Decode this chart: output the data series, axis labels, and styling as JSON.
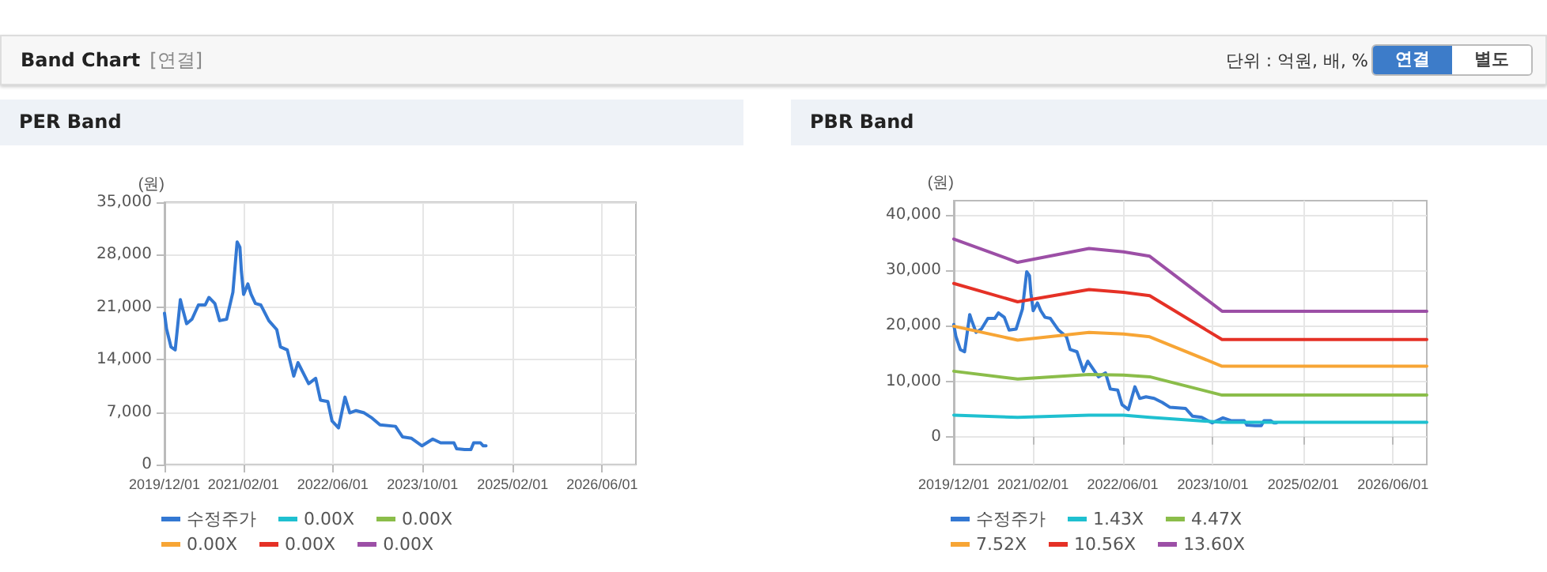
{
  "chart_data": [
    {
      "type": "other",
      "title": "Band Chart",
      "subtitle": "[연결]",
      "annotations": [
        "단위 : 억원, 배, %",
        "연결",
        "별도"
      ]
    },
    {
      "type": "line",
      "title": "PER Band",
      "ylabel": "(원)",
      "xlim": [
        "2019-12-01",
        "2026-12-01"
      ],
      "ylim": [
        0,
        35000
      ],
      "yticks": [
        0,
        {
          "value": 7000,
          "label": "7,000"
        },
        {
          "value": 14000,
          "label": "14,000"
        },
        {
          "value": 21000,
          "label": "21,000"
        },
        {
          "value": 28000,
          "label": "28,000"
        },
        {
          "value": 35000,
          "label": "35,000"
        }
      ],
      "xticks": [
        {
          "value": "2019-12-01",
          "label": "2019/12/01"
        },
        {
          "value": "2021-02-01",
          "label": "2021/02/01"
        },
        {
          "value": "2022-06-01",
          "label": "2022/06/01"
        },
        {
          "value": "2023-10-01",
          "label": "2023/10/01"
        },
        {
          "value": "2025-02-01",
          "label": "2025/02/01"
        },
        {
          "value": "2026-06-01",
          "label": "2026/06/01"
        }
      ],
      "grid": true,
      "legend": "bottom",
      "marker": "none",
      "line_style": "solid",
      "series": [
        {
          "name": "수정주가",
          "color": "#3378d3",
          "x": [
            "2019-12-01",
            "2019-12-12",
            "2020-01-05",
            "2020-01-28",
            "2020-02-25",
            "2020-03-07",
            "2020-03-30",
            "2020-04-28",
            "2020-06-02",
            "2020-07-09",
            "2020-07-29",
            "2020-08-30",
            "2020-09-25",
            "2020-11-02",
            "2020-12-06",
            "2020-12-29",
            "2021-01-13",
            "2021-01-21",
            "2021-02-02",
            "2021-02-25",
            "2021-03-15",
            "2021-04-07",
            "2021-05-06",
            "2021-06-19",
            "2021-08-01",
            "2021-08-21",
            "2021-09-27",
            "2021-11-01",
            "2021-11-24",
            "2022-01-21",
            "2022-02-28",
            "2022-03-26",
            "2022-05-05",
            "2022-05-28",
            "2022-07-02",
            "2022-08-06",
            "2022-09-01",
            "2022-10-05",
            "2022-11-18",
            "2022-12-31",
            "2023-02-12",
            "2023-05-07",
            "2023-06-14",
            "2023-08-02",
            "2023-09-28",
            "2023-11-25",
            "2024-01-07",
            "2024-03-19",
            "2024-04-03",
            "2024-05-16",
            "2024-06-19",
            "2024-07-04",
            "2024-08-10",
            "2024-08-25",
            "2024-09-09"
          ],
          "values": [
            20200,
            18100,
            15700,
            15300,
            22000,
            20900,
            18800,
            19400,
            21300,
            21300,
            22300,
            21500,
            19200,
            19400,
            23000,
            29700,
            29000,
            25800,
            22700,
            24100,
            22700,
            21500,
            21300,
            19200,
            18000,
            15700,
            15300,
            11800,
            13600,
            10800,
            11500,
            8600,
            8400,
            5800,
            4900,
            9000,
            6900,
            7200,
            6900,
            6200,
            5300,
            5100,
            3700,
            3500,
            2500,
            3400,
            2900,
            2900,
            2100,
            2000,
            2000,
            2900,
            2900,
            2500,
            2500
          ]
        },
        {
          "name": "0.00X",
          "color": "#1fc0d0"
        },
        {
          "name": "0.00X",
          "color": "#8bbd4a"
        },
        {
          "name": "0.00X",
          "color": "#f7a535"
        },
        {
          "name": "0.00X",
          "color": "#e53126"
        },
        {
          "name": "0.00X",
          "color": "#9c4fa6"
        }
      ]
    },
    {
      "type": "line",
      "title": "PBR Band",
      "ylabel": "(원)",
      "xlim": [
        "2019-12-01",
        "2026-12-01"
      ],
      "ylim": [
        -5000,
        42500
      ],
      "yticks": [
        0,
        {
          "value": 10000,
          "label": "10,000"
        },
        {
          "value": 20000,
          "label": "20,000"
        },
        {
          "value": 30000,
          "label": "30,000"
        },
        {
          "value": 40000,
          "label": "40,000"
        }
      ],
      "xticks": [
        {
          "value": "2019-12-01",
          "label": "2019/12/01"
        },
        {
          "value": "2021-02-01",
          "label": "2021/02/01"
        },
        {
          "value": "2022-06-01",
          "label": "2022/06/01"
        },
        {
          "value": "2023-10-01",
          "label": "2023/10/01"
        },
        {
          "value": "2025-02-01",
          "label": "2025/02/01"
        },
        {
          "value": "2026-06-01",
          "label": "2026/06/01"
        }
      ],
      "grid": true,
      "legend": "bottom",
      "marker": "none",
      "line_style": "solid",
      "series": [
        {
          "name": "수정주가",
          "color": "#3378d3",
          "x": [
            "2019-12-01",
            "2019-12-12",
            "2020-01-05",
            "2020-01-28",
            "2020-02-25",
            "2020-03-07",
            "2020-03-30",
            "2020-04-28",
            "2020-06-02",
            "2020-07-09",
            "2020-07-29",
            "2020-08-30",
            "2020-09-25",
            "2020-11-02",
            "2020-12-06",
            "2020-12-29",
            "2021-01-13",
            "2021-01-21",
            "2021-02-02",
            "2021-02-25",
            "2021-03-15",
            "2021-04-07",
            "2021-05-06",
            "2021-06-19",
            "2021-08-01",
            "2021-08-21",
            "2021-09-27",
            "2021-11-01",
            "2021-11-24",
            "2022-01-21",
            "2022-02-28",
            "2022-03-26",
            "2022-05-05",
            "2022-05-28",
            "2022-07-02",
            "2022-08-06",
            "2022-09-01",
            "2022-10-05",
            "2022-11-18",
            "2022-12-31",
            "2023-02-12",
            "2023-05-07",
            "2023-06-14",
            "2023-08-02",
            "2023-09-28",
            "2023-11-25",
            "2024-01-07",
            "2024-03-19",
            "2024-04-03",
            "2024-05-16",
            "2024-06-19",
            "2024-07-04",
            "2024-08-10",
            "2024-08-25",
            "2024-09-09"
          ],
          "values": [
            20200,
            18100,
            15700,
            15300,
            22000,
            20900,
            18800,
            19400,
            21300,
            21300,
            22300,
            21500,
            19200,
            19400,
            23000,
            29700,
            29000,
            25800,
            22700,
            24100,
            22700,
            21500,
            21300,
            19200,
            18000,
            15700,
            15300,
            11800,
            13600,
            10800,
            11500,
            8600,
            8400,
            5800,
            4900,
            9000,
            6900,
            7200,
            6900,
            6200,
            5300,
            5100,
            3700,
            3500,
            2500,
            3400,
            2900,
            2900,
            2100,
            2000,
            2000,
            2900,
            2900,
            2500,
            2500
          ]
        },
        {
          "name": "1.43X",
          "color": "#1fc0d0",
          "x": [
            "2019-12-01",
            "2020-11-10",
            "2021-12-01",
            "2022-06-05",
            "2022-10-25",
            "2023-11-20",
            "2026-12-01"
          ],
          "values": [
            3900,
            3500,
            3900,
            3900,
            3500,
            2600,
            2600
          ]
        },
        {
          "name": "4.47X",
          "color": "#8bbd4a",
          "x": [
            "2019-12-01",
            "2020-11-10",
            "2021-12-01",
            "2022-06-05",
            "2022-10-25",
            "2023-11-20",
            "2026-12-01"
          ],
          "values": [
            11800,
            10400,
            11200,
            11100,
            10800,
            7500,
            7500
          ]
        },
        {
          "name": "7.52X",
          "color": "#f7a535",
          "x": [
            "2019-12-01",
            "2020-11-10",
            "2021-12-01",
            "2022-06-05",
            "2022-10-25",
            "2023-11-20",
            "2026-12-01"
          ],
          "values": [
            19900,
            17400,
            18800,
            18500,
            18000,
            12700,
            12700
          ]
        },
        {
          "name": "10.56X",
          "color": "#e53126",
          "x": [
            "2019-12-01",
            "2020-11-10",
            "2021-12-01",
            "2022-06-05",
            "2022-10-25",
            "2023-11-20",
            "2026-12-01"
          ],
          "values": [
            27600,
            24300,
            26500,
            26000,
            25400,
            17500,
            17500
          ]
        },
        {
          "name": "13.60X",
          "color": "#9c4fa6",
          "x": [
            "2019-12-01",
            "2020-11-10",
            "2021-12-01",
            "2022-06-05",
            "2022-10-25",
            "2023-11-20",
            "2026-12-01"
          ],
          "values": [
            35600,
            31400,
            33900,
            33300,
            32500,
            22600,
            22600
          ]
        }
      ]
    }
  ]
}
